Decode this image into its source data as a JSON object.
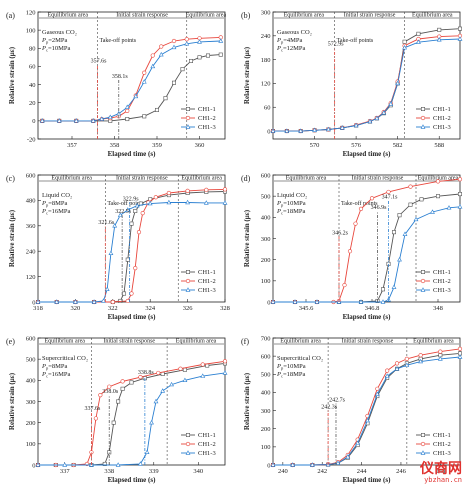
{
  "watermark": {
    "brand": "仪商网",
    "url": "ybzhan.cn"
  },
  "colors": {
    "CH1-1": "#555555",
    "CH1-2": "#e8463c",
    "CH1-3": "#2a7fd1"
  },
  "chart_data": [
    {
      "panel": "(a)",
      "type": "line",
      "zones": [
        "Equilibrium area",
        "Initial strain response",
        "Equilibrium area"
      ],
      "zone_bounds": [
        357.6,
        359.7
      ],
      "condition": [
        "Gaseous CO₂",
        "Pp=2MPa",
        "Pc=10MPa"
      ],
      "takeoff_label": "Take-off points",
      "takeoff": [
        {
          "label": "357.6s",
          "x": 357.6,
          "y": 62
        },
        {
          "label": "358.1s",
          "x": 358.1,
          "y": 45
        }
      ],
      "xlabel": "Elapsed time (s)",
      "ylabel": "Relative strain (με)",
      "xlim": [
        356.2,
        360.6
      ],
      "ylim": [
        -20,
        120
      ],
      "xticks": [
        357,
        358,
        359,
        360
      ],
      "yticks": [
        -20,
        0,
        20,
        40,
        60,
        80,
        100,
        120
      ],
      "legend_pos": "bottom-right",
      "series": [
        {
          "name": "CH1-1",
          "x": [
            356.3,
            356.7,
            357.1,
            357.5,
            357.9,
            358.3,
            358.7,
            359.0,
            359.2,
            359.4,
            359.6,
            359.8,
            360.0,
            360.2,
            360.5
          ],
          "y": [
            0,
            0,
            0,
            0,
            0,
            2,
            5,
            12,
            25,
            42,
            57,
            66,
            70,
            72,
            73
          ]
        },
        {
          "name": "CH1-2",
          "x": [
            356.3,
            356.7,
            357.1,
            357.5,
            357.7,
            357.9,
            358.1,
            358.3,
            358.5,
            358.7,
            358.9,
            359.1,
            359.4,
            359.7,
            360.0,
            360.5
          ],
          "y": [
            0,
            0,
            0,
            0,
            2,
            3,
            5,
            11,
            28,
            53,
            72,
            82,
            88,
            90,
            91,
            92
          ]
        },
        {
          "name": "CH1-3",
          "x": [
            356.3,
            356.7,
            357.1,
            357.5,
            357.7,
            357.9,
            358.1,
            358.3,
            358.5,
            358.7,
            358.9,
            359.1,
            359.4,
            359.7,
            360.0,
            360.5
          ],
          "y": [
            0,
            0,
            0,
            0,
            2,
            4,
            8,
            15,
            27,
            43,
            60,
            73,
            81,
            85,
            87,
            88
          ]
        }
      ]
    },
    {
      "panel": "(b)",
      "type": "line",
      "zones": [
        "Equilibrium area",
        "Initial strain response",
        "Equilibrium area"
      ],
      "zone_bounds": [
        572.9,
        583.0
      ],
      "condition": [
        "Gaseous CO₂",
        "Pp=4MPa",
        "Pc=12MPa"
      ],
      "takeoff_label": "Take-off points",
      "takeoff": [
        {
          "label": "572.9s",
          "x": 572.9,
          "y": 210
        }
      ],
      "xlabel": "Elapsed time (s)",
      "ylabel": "Relative strain (με)",
      "xlim": [
        564,
        591
      ],
      "ylim": [
        -20,
        300
      ],
      "xticks": [
        570,
        576,
        582,
        588
      ],
      "yticks": [
        0,
        60,
        120,
        180,
        240,
        300
      ],
      "legend_pos": "bottom-right",
      "series": [
        {
          "name": "CH1-1",
          "x": [
            564,
            566,
            568,
            570,
            572,
            574,
            576,
            578,
            579,
            580,
            581,
            582,
            583,
            585,
            588,
            591
          ],
          "y": [
            0,
            0,
            0,
            2,
            4,
            8,
            14,
            24,
            32,
            45,
            65,
            120,
            225,
            245,
            255,
            258
          ]
        },
        {
          "name": "CH1-2",
          "x": [
            564,
            566,
            568,
            570,
            572,
            574,
            576,
            578,
            579,
            580,
            581,
            582,
            583,
            585,
            588,
            591
          ],
          "y": [
            0,
            0,
            0,
            2,
            4,
            8,
            15,
            25,
            33,
            48,
            70,
            125,
            215,
            232,
            238,
            240
          ]
        },
        {
          "name": "CH1-3",
          "x": [
            564,
            566,
            568,
            570,
            572,
            574,
            576,
            578,
            579,
            580,
            581,
            582,
            583,
            585,
            588,
            591
          ],
          "y": [
            0,
            0,
            0,
            2,
            4,
            8,
            14,
            24,
            32,
            46,
            68,
            120,
            210,
            224,
            230,
            232
          ]
        }
      ]
    },
    {
      "panel": "(c)",
      "type": "line",
      "zones": [
        "Equilibrium area",
        "Initial strain response",
        "Equilibrium area"
      ],
      "zone_bounds": [
        321.6,
        325.5
      ],
      "condition": [
        "Liquid CO₂",
        "Pp=8MPa",
        "Pc=16MPa"
      ],
      "takeoff_label": "Take-off points",
      "takeoff": [
        {
          "label": "321.6s",
          "x": 321.6,
          "y": 360
        },
        {
          "label": "322.5s",
          "x": 322.5,
          "y": 410
        },
        {
          "label": "322.9s",
          "x": 322.9,
          "y": 470
        }
      ],
      "xlabel": "Elapsed time (s)",
      "ylabel": "Relative strain (με)",
      "xlim": [
        318,
        328
      ],
      "ylim": [
        0,
        600
      ],
      "xticks": [
        318,
        320,
        322,
        324,
        326,
        328
      ],
      "yticks": [
        0,
        120,
        240,
        360,
        480,
        600
      ],
      "legend_pos": "bottom-right",
      "series": [
        {
          "name": "CH1-1",
          "x": [
            318,
            319,
            320,
            321,
            322,
            322.4,
            322.6,
            322.8,
            323.0,
            323.2,
            323.5,
            324,
            325,
            326,
            327,
            328
          ],
          "y": [
            0,
            0,
            0,
            0,
            0,
            5,
            40,
            200,
            370,
            430,
            465,
            485,
            505,
            515,
            520,
            522
          ]
        },
        {
          "name": "CH1-2",
          "x": [
            318,
            319,
            320,
            321,
            322,
            322.8,
            323.0,
            323.2,
            323.4,
            323.6,
            323.9,
            324.3,
            325,
            326,
            327,
            328
          ],
          "y": [
            0,
            0,
            0,
            0,
            0,
            5,
            40,
            160,
            330,
            420,
            470,
            495,
            515,
            525,
            530,
            532
          ]
        },
        {
          "name": "CH1-3",
          "x": [
            318,
            319,
            320,
            321,
            321.5,
            321.7,
            321.9,
            322.1,
            322.4,
            322.8,
            323.3,
            324,
            325,
            326,
            327,
            328
          ],
          "y": [
            0,
            0,
            0,
            0,
            5,
            60,
            230,
            360,
            410,
            435,
            455,
            465,
            470,
            470,
            468,
            468
          ]
        }
      ]
    },
    {
      "panel": "(d)",
      "type": "line",
      "zones": [
        "Equilibrium area",
        "Initial strain response",
        "Equilibrium area"
      ],
      "zone_bounds": [
        346.2,
        347.6
      ],
      "condition": [
        "Liquid CO₂",
        "Pp=10MPa",
        "Pc=18MPa"
      ],
      "takeoff_label": "Take-off points",
      "takeoff": [
        {
          "label": "346.2s",
          "x": 346.2,
          "y": 310
        },
        {
          "label": "346.9s",
          "x": 346.9,
          "y": 430
        },
        {
          "label": "347.1s",
          "x": 347.1,
          "y": 480
        }
      ],
      "xlabel": "Elapsed time (s)",
      "ylabel": "Relative strain (με)",
      "xlim": [
        345.0,
        348.4
      ],
      "ylim": [
        0,
        600
      ],
      "xticks": [
        345.6,
        346.8,
        348.0
      ],
      "yticks": [
        0,
        100,
        200,
        300,
        400,
        500,
        600
      ],
      "legend_pos": "bottom-right",
      "series": [
        {
          "name": "CH1-1",
          "x": [
            345.0,
            345.4,
            345.8,
            346.2,
            346.6,
            346.9,
            347.0,
            347.1,
            347.2,
            347.3,
            347.5,
            347.7,
            348.0,
            348.4
          ],
          "y": [
            0,
            0,
            0,
            0,
            0,
            5,
            60,
            180,
            330,
            410,
            460,
            485,
            500,
            510
          ]
        },
        {
          "name": "CH1-2",
          "x": [
            345.0,
            345.4,
            345.8,
            346.1,
            346.2,
            346.3,
            346.4,
            346.5,
            346.6,
            346.8,
            347.1,
            347.5,
            348.0,
            348.4
          ],
          "y": [
            0,
            0,
            0,
            0,
            5,
            80,
            240,
            370,
            440,
            490,
            520,
            545,
            570,
            580
          ]
        },
        {
          "name": "CH1-3",
          "x": [
            345.0,
            345.4,
            345.8,
            346.2,
            346.6,
            347.0,
            347.1,
            347.2,
            347.3,
            347.4,
            347.6,
            347.9,
            348.2,
            348.4
          ],
          "y": [
            0,
            0,
            0,
            0,
            0,
            0,
            10,
            70,
            200,
            320,
            390,
            425,
            445,
            450
          ]
        }
      ]
    },
    {
      "panel": "(e)",
      "type": "line",
      "zones": [
        "Equilibrium area",
        "Initial strain response",
        "Equilibrium area"
      ],
      "zone_bounds": [
        337.6,
        339.3
      ],
      "condition": [
        "Supercritical CO₂",
        "Pp=8MPa",
        "Pc=16MPa"
      ],
      "takeoff_label": "",
      "takeoff": [
        {
          "label": "337.6s",
          "x": 337.6,
          "y": 250
        },
        {
          "label": "338.0s",
          "x": 338.0,
          "y": 330
        },
        {
          "label": "338.8s",
          "x": 338.8,
          "y": 420
        }
      ],
      "xlabel": "Elapsed time (s)",
      "ylabel": "Relative strain (με)",
      "xlim": [
        336.4,
        340.6
      ],
      "ylim": [
        0,
        600
      ],
      "xticks": [
        337,
        338,
        339,
        340
      ],
      "yticks": [
        0,
        100,
        200,
        300,
        400,
        500,
        600
      ],
      "legend_pos": "bottom-right",
      "series": [
        {
          "name": "CH1-1",
          "x": [
            336.4,
            336.8,
            337.2,
            337.6,
            337.9,
            338.0,
            338.1,
            338.2,
            338.3,
            338.5,
            338.8,
            339.2,
            339.7,
            340.2,
            340.6
          ],
          "y": [
            0,
            0,
            0,
            0,
            5,
            60,
            200,
            300,
            360,
            390,
            410,
            430,
            450,
            470,
            480
          ]
        },
        {
          "name": "CH1-2",
          "x": [
            336.4,
            336.8,
            337.2,
            337.5,
            337.6,
            337.7,
            337.8,
            338.0,
            338.3,
            338.7,
            339.1,
            339.6,
            340.1,
            340.6
          ],
          "y": [
            0,
            0,
            0,
            5,
            60,
            220,
            330,
            370,
            395,
            415,
            435,
            455,
            475,
            490
          ]
        },
        {
          "name": "CH1-3",
          "x": [
            336.4,
            337.0,
            337.6,
            338.2,
            338.7,
            338.85,
            338.95,
            339.05,
            339.2,
            339.4,
            339.7,
            340.1,
            340.6
          ],
          "y": [
            0,
            0,
            0,
            0,
            5,
            60,
            200,
            300,
            350,
            380,
            400,
            420,
            435
          ]
        }
      ]
    },
    {
      "panel": "(f)",
      "type": "line",
      "zones": [
        "Equilibrium area",
        "Initial strain response",
        "Equilibrium area"
      ],
      "zone_bounds": [
        242.3,
        246.3
      ],
      "condition": [
        "Supercritical CO₂",
        "Pp=10MPa",
        "Pc=18MPa"
      ],
      "takeoff_label": "",
      "takeoff": [
        {
          "label": "242.3s",
          "x": 242.3,
          "y": 300
        },
        {
          "label": "242.7s",
          "x": 242.7,
          "y": 340
        }
      ],
      "xlabel": "Elapsed time (s)",
      "ylabel": "Relative strain (με)",
      "xlim": [
        239.5,
        249.0
      ],
      "ylim": [
        0,
        700
      ],
      "xticks": [
        240,
        242,
        244,
        246,
        248
      ],
      "yticks": [
        0,
        100,
        200,
        300,
        400,
        500,
        600,
        700
      ],
      "legend_pos": "bottom-right",
      "series": [
        {
          "name": "CH1-1",
          "x": [
            239.5,
            240.5,
            241.5,
            242.3,
            242.8,
            243.3,
            243.8,
            244.3,
            244.8,
            245.3,
            245.8,
            246.3,
            247,
            248,
            249
          ],
          "y": [
            0,
            0,
            0,
            2,
            10,
            40,
            110,
            230,
            380,
            480,
            530,
            560,
            585,
            605,
            615
          ]
        },
        {
          "name": "CH1-2",
          "x": [
            239.5,
            240.5,
            241.5,
            242.3,
            242.8,
            243.3,
            243.8,
            244.3,
            244.8,
            245.3,
            245.8,
            246.3,
            247,
            248,
            249
          ],
          "y": [
            0,
            0,
            0,
            3,
            15,
            55,
            140,
            270,
            420,
            520,
            560,
            585,
            605,
            625,
            640
          ]
        },
        {
          "name": "CH1-3",
          "x": [
            239.5,
            240.5,
            241.5,
            242.3,
            242.8,
            243.3,
            243.8,
            244.3,
            244.8,
            245.3,
            245.8,
            246.3,
            247,
            248,
            249
          ],
          "y": [
            0,
            0,
            0,
            2,
            10,
            45,
            120,
            245,
            390,
            490,
            530,
            550,
            570,
            585,
            595
          ]
        }
      ]
    }
  ]
}
